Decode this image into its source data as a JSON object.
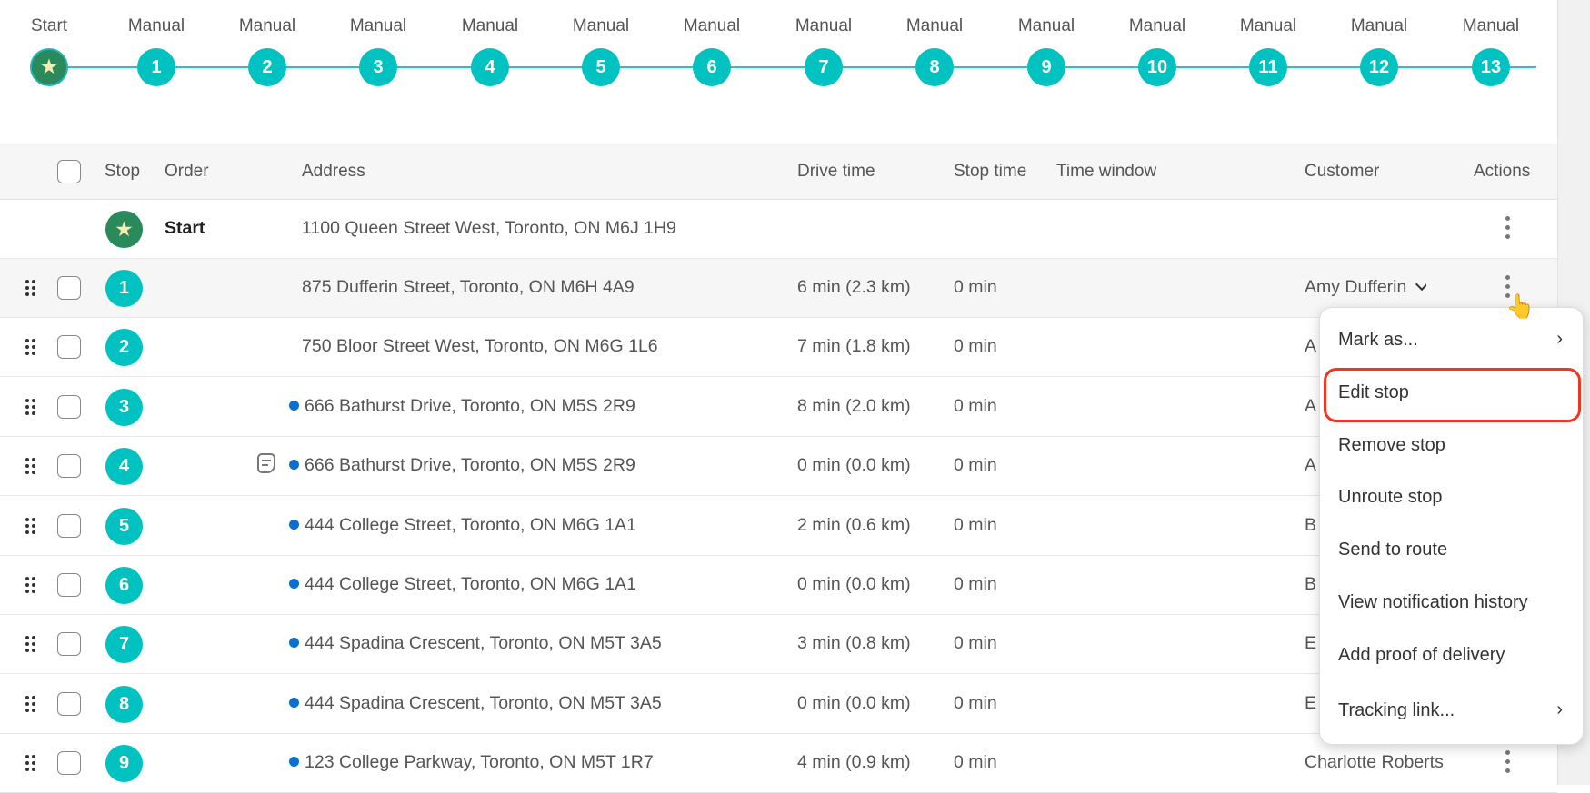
{
  "timeline": {
    "start": {
      "label": "Start",
      "icon": "star-icon"
    },
    "steps": [
      {
        "label": "Manual",
        "num": "1"
      },
      {
        "label": "Manual",
        "num": "2"
      },
      {
        "label": "Manual",
        "num": "3"
      },
      {
        "label": "Manual",
        "num": "4"
      },
      {
        "label": "Manual",
        "num": "5"
      },
      {
        "label": "Manual",
        "num": "6"
      },
      {
        "label": "Manual",
        "num": "7"
      },
      {
        "label": "Manual",
        "num": "8"
      },
      {
        "label": "Manual",
        "num": "9"
      },
      {
        "label": "Manual",
        "num": "10"
      },
      {
        "label": "Manual",
        "num": "11"
      },
      {
        "label": "Manual",
        "num": "12"
      },
      {
        "label": "Manual",
        "num": "13"
      }
    ],
    "accent": "#00c2c0",
    "start_color": "#2a8a5c"
  },
  "table": {
    "headers": {
      "stop": "Stop",
      "order": "Order",
      "address": "Address",
      "drive_time": "Drive time",
      "stop_time": "Stop time",
      "time_window": "Time window",
      "customer": "Customer",
      "actions": "Actions"
    },
    "start_row": {
      "order": "Start",
      "address": "1100 Queen Street West, Toronto, ON M6J 1H9"
    },
    "rows": [
      {
        "stop": "1",
        "address": "875 Dufferin Street, Toronto, ON M6H 4A9",
        "dot": false,
        "note": false,
        "drive": "6 min (2.3 km)",
        "stop_time": "0 min",
        "customer": "Amy Dufferin",
        "dropdown": true,
        "hover": true
      },
      {
        "stop": "2",
        "address": "750 Bloor Street West, Toronto, ON M6G 1L6",
        "dot": false,
        "note": false,
        "drive": "7 min (1.8 km)",
        "stop_time": "0 min",
        "customer": "A"
      },
      {
        "stop": "3",
        "address": "666 Bathurst Drive, Toronto, ON M5S 2R9",
        "dot": true,
        "note": false,
        "drive": "8 min (2.0 km)",
        "stop_time": "0 min",
        "customer": "A"
      },
      {
        "stop": "4",
        "address": "666 Bathurst Drive, Toronto, ON M5S 2R9",
        "dot": true,
        "note": true,
        "drive": "0 min (0.0 km)",
        "stop_time": "0 min",
        "customer": "A"
      },
      {
        "stop": "5",
        "address": "444 College Street, Toronto, ON M6G 1A1",
        "dot": true,
        "note": false,
        "drive": "2 min (0.6 km)",
        "stop_time": "0 min",
        "customer": "B"
      },
      {
        "stop": "6",
        "address": "444 College Street, Toronto, ON M6G 1A1",
        "dot": true,
        "note": false,
        "drive": "0 min (0.0 km)",
        "stop_time": "0 min",
        "customer": "B"
      },
      {
        "stop": "7",
        "address": "444 Spadina Crescent, Toronto, ON M5T 3A5",
        "dot": true,
        "note": false,
        "drive": "3 min (0.8 km)",
        "stop_time": "0 min",
        "customer": "E"
      },
      {
        "stop": "8",
        "address": "444 Spadina Crescent, Toronto, ON M5T 3A5",
        "dot": true,
        "note": false,
        "drive": "0 min (0.0 km)",
        "stop_time": "0 min",
        "customer": "E"
      },
      {
        "stop": "9",
        "address": "123 College Parkway, Toronto, ON M5T 1R7",
        "dot": true,
        "note": false,
        "drive": "4 min (0.9 km)",
        "stop_time": "0 min",
        "customer": "Charlotte Roberts"
      }
    ],
    "dot_color": "#0a6fcf"
  },
  "menu": {
    "items": [
      {
        "label": "Mark as...",
        "submenu": true
      },
      {
        "label": "Edit stop",
        "highlighted": true
      },
      {
        "label": "Remove stop"
      },
      {
        "label": "Unroute stop"
      },
      {
        "label": "Send to route"
      },
      {
        "label": "View notification history"
      },
      {
        "label": "Add proof of delivery"
      },
      {
        "label": "Tracking link...",
        "submenu": true
      }
    ],
    "highlight_color": "#f5341f"
  }
}
